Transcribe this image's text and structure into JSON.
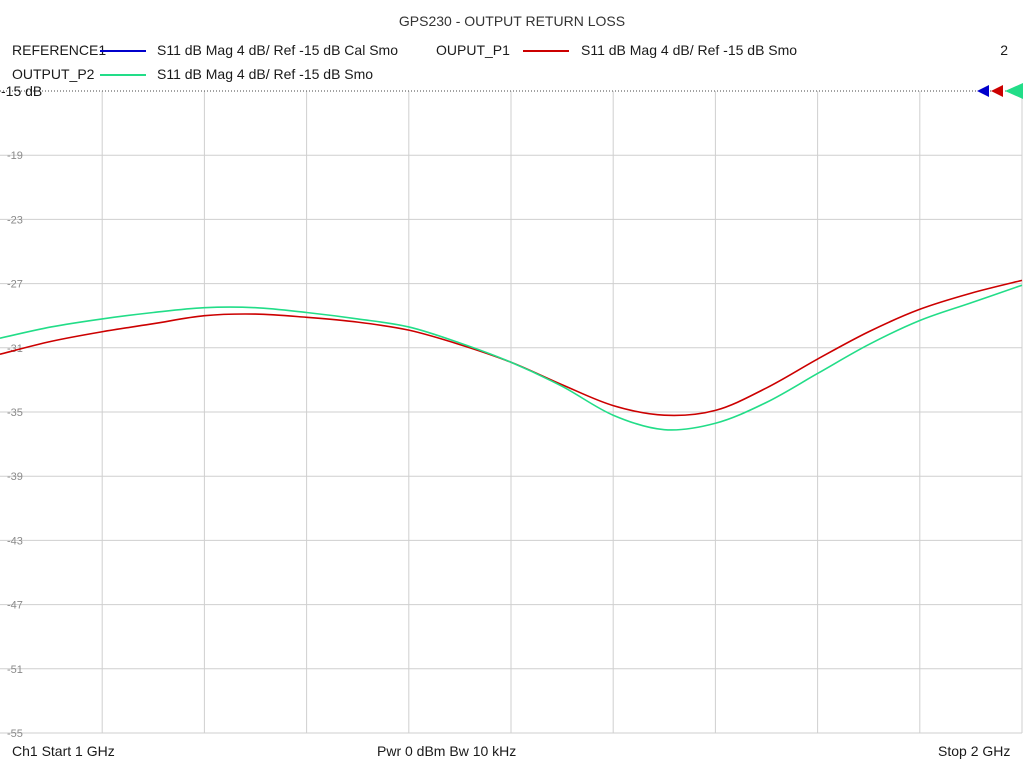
{
  "chart_data": {
    "type": "line",
    "title": "GPS230 - OUTPUT RETURN LOSS",
    "ref_label": "-15 dB",
    "ylim": [
      -55,
      -15
    ],
    "y_ticks": [
      -15,
      -19,
      -23,
      -27,
      -31,
      -35,
      -39,
      -43,
      -47,
      -51,
      -55
    ],
    "y_tick_labels": [
      "-15",
      "-19",
      "-23",
      "-27",
      "-31",
      "-35",
      "-39",
      "-43",
      "-47",
      "-51",
      "-55"
    ],
    "xlim": [
      1,
      2
    ],
    "x_unit": "GHz",
    "grid": true,
    "trace_number": "2",
    "legend": [
      {
        "name": "REFERENCE1",
        "desc": "S11  dB Mag  4 dB/ Ref -15 dB  Cal Smo",
        "color": "#0000cc"
      },
      {
        "name": "OUPUT_P1",
        "desc": "S11  dB Mag  4 dB/ Ref -15 dB  Smo",
        "color": "#cc0000"
      },
      {
        "name": "OUTPUT_P2",
        "desc": "S11  dB Mag  4 dB/ Ref -15 dB  Smo",
        "color": "#22dd88"
      }
    ],
    "series": [
      {
        "name": "OUPUT_P1",
        "color": "#cc0000",
        "x": [
          1.0,
          1.05,
          1.1,
          1.15,
          1.2,
          1.25,
          1.3,
          1.35,
          1.4,
          1.45,
          1.5,
          1.55,
          1.6,
          1.65,
          1.7,
          1.75,
          1.8,
          1.85,
          1.9,
          1.95,
          2.0
        ],
        "y": [
          -31.4,
          -30.6,
          -30.0,
          -29.5,
          -29.0,
          -28.9,
          -29.1,
          -29.4,
          -29.9,
          -30.8,
          -31.9,
          -33.3,
          -34.6,
          -35.2,
          -34.9,
          -33.5,
          -31.7,
          -30.0,
          -28.6,
          -27.6,
          -26.8
        ]
      },
      {
        "name": "OUTPUT_P2",
        "color": "#22dd88",
        "x": [
          1.0,
          1.05,
          1.1,
          1.15,
          1.2,
          1.25,
          1.3,
          1.35,
          1.4,
          1.45,
          1.5,
          1.55,
          1.6,
          1.65,
          1.7,
          1.75,
          1.8,
          1.85,
          1.9,
          1.95,
          2.0
        ],
        "y": [
          -30.4,
          -29.7,
          -29.2,
          -28.8,
          -28.5,
          -28.5,
          -28.8,
          -29.2,
          -29.7,
          -30.7,
          -31.9,
          -33.4,
          -35.2,
          -36.1,
          -35.7,
          -34.4,
          -32.6,
          -30.8,
          -29.3,
          -28.2,
          -27.1
        ]
      }
    ]
  },
  "footer": {
    "left": "Ch1  Start  1 GHz",
    "center": "Pwr  0 dBm  Bw  10 kHz",
    "right": "Stop  2 GHz"
  }
}
